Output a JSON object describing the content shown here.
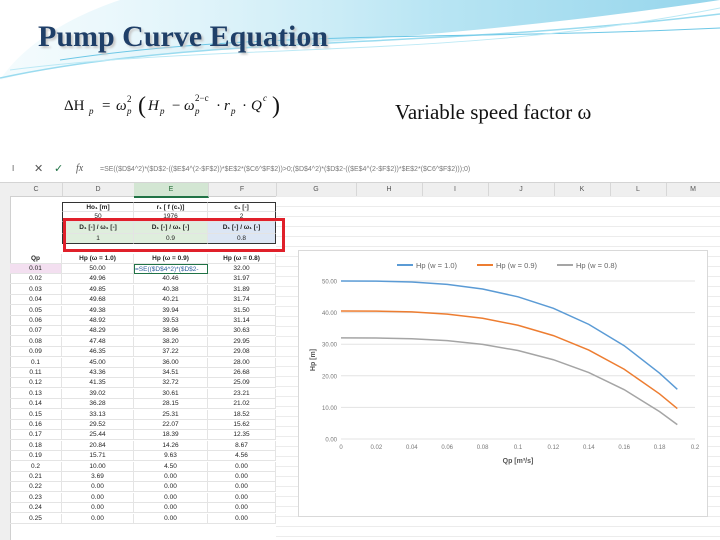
{
  "slide": {
    "title": "Pump Curve Equation",
    "formula_text": "ΔHp = ωp2 (Hp − ωp2−c · rp · Qc)",
    "speed_label": "Variable speed factor ω"
  },
  "excel": {
    "name_box": "I",
    "fx": "fx",
    "formula": "=SE(($D$4^2)*($D$2-(($E$4^(2-$F$2))*$E$2*($C6^$F$2))>0;($D$4^2)*($D$2-(($E$4^(2-$F$2))*$E$2*($C6^$F$2)));0)",
    "columns": [
      "C",
      "D",
      "E",
      "F",
      "G",
      "H",
      "I",
      "J",
      "K",
      "L",
      "M"
    ],
    "param_headers": [
      "Ho₁ [m]",
      "r₁ [ f (c₁)]",
      "c₁ [-]"
    ],
    "param_values": [
      "50",
      "1976",
      "2"
    ],
    "omega_headers": [
      "D₁ [-] / ω₁ [-]",
      "D₁ [-] / ω₁ [-]",
      "D₁ [-] / ω₁ [-]"
    ],
    "omega_values": [
      "1",
      "0.9",
      "0.8"
    ],
    "table_headers": [
      "Qp",
      "Hp (ω = 1.0)",
      "Hp (ω = 0.9)",
      "Hp (ω = 0.8)"
    ],
    "rows": [
      [
        "0.01",
        "50.00",
        "=SE(($D$4^2)*($D$2-",
        "32.00"
      ],
      [
        "0.02",
        "49.96",
        "40.46",
        "31.97"
      ],
      [
        "0.03",
        "49.85",
        "40.38",
        "31.89"
      ],
      [
        "0.04",
        "49.68",
        "40.21",
        "31.74"
      ],
      [
        "0.05",
        "49.38",
        "39.94",
        "31.50"
      ],
      [
        "0.06",
        "48.92",
        "39.53",
        "31.14"
      ],
      [
        "0.07",
        "48.29",
        "38.96",
        "30.63"
      ],
      [
        "0.08",
        "47.48",
        "38.20",
        "29.95"
      ],
      [
        "0.09",
        "46.35",
        "37.22",
        "29.08"
      ],
      [
        "0.1",
        "45.00",
        "36.00",
        "28.00"
      ],
      [
        "0.11",
        "43.36",
        "34.51",
        "26.68"
      ],
      [
        "0.12",
        "41.35",
        "32.72",
        "25.09"
      ],
      [
        "0.13",
        "39.02",
        "30.61",
        "23.21"
      ],
      [
        "0.14",
        "36.28",
        "28.15",
        "21.02"
      ],
      [
        "0.15",
        "33.13",
        "25.31",
        "18.52"
      ],
      [
        "0.16",
        "29.52",
        "22.07",
        "15.62"
      ],
      [
        "0.17",
        "25.44",
        "18.39",
        "12.35"
      ],
      [
        "0.18",
        "20.84",
        "14.26",
        "8.67"
      ],
      [
        "0.19",
        "15.71",
        "9.63",
        "4.56"
      ],
      [
        "0.2",
        "10.00",
        "4.50",
        "0.00"
      ],
      [
        "0.21",
        "3.69",
        "0.00",
        "0.00"
      ],
      [
        "0.22",
        "0.00",
        "0.00",
        "0.00"
      ],
      [
        "0.23",
        "0.00",
        "0.00",
        "0.00"
      ],
      [
        "0.24",
        "0.00",
        "0.00",
        "0.00"
      ],
      [
        "0.25",
        "0.00",
        "0.00",
        "0.00"
      ]
    ]
  },
  "chart_data": {
    "type": "line",
    "title": "",
    "xlabel": "Qp [m³/s]",
    "ylabel": "Hp [m]",
    "x": [
      0,
      0.02,
      0.04,
      0.06,
      0.08,
      0.1,
      0.12,
      0.14,
      0.16,
      0.18,
      0.19
    ],
    "x_ticks": [
      "0",
      "0.02",
      "0.04",
      "0.06",
      "0.08",
      "0.1",
      "0.12",
      "0.14",
      "0.16",
      "0.18",
      "0.2"
    ],
    "y_ticks": [
      "0.00",
      "10.00",
      "20.00",
      "30.00",
      "40.00",
      "50.00"
    ],
    "xlim": [
      0,
      0.2
    ],
    "ylim": [
      0,
      50
    ],
    "grid": true,
    "legend": "top",
    "series": [
      {
        "name": "Hp (w = 1.0)",
        "color": "#5b9bd5",
        "values": [
          50.0,
          49.96,
          49.68,
          48.92,
          47.48,
          45.0,
          41.35,
          36.28,
          29.52,
          20.84,
          15.71
        ]
      },
      {
        "name": "Hp (w = 0.9)",
        "color": "#ed7d31",
        "values": [
          40.5,
          40.46,
          40.21,
          39.53,
          38.2,
          36.0,
          32.72,
          28.15,
          22.07,
          14.26,
          9.63
        ]
      },
      {
        "name": "Hp (w = 0.8)",
        "color": "#a5a5a5",
        "values": [
          32.0,
          31.97,
          31.74,
          31.14,
          29.95,
          28.0,
          25.09,
          21.02,
          15.62,
          8.67,
          4.56
        ]
      }
    ]
  }
}
